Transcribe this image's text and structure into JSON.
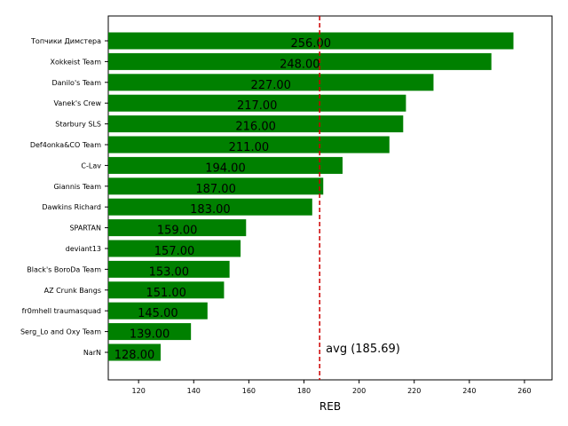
{
  "chart_data": {
    "type": "bar",
    "orientation": "horizontal",
    "categories": [
      "Топчики Димстера",
      "Xokkeist Team",
      "Danilo's Team",
      "Vanek's Crew",
      "Starbury SLS",
      "Def4onka&CO Team",
      "C-Lav",
      "Giannis Team",
      "Dawkins Richard",
      "SPARTAN",
      "deviant13",
      "Black's BoroDa Team",
      "AZ Crunk Bangs",
      "fr0mhell traumasquad",
      "Serg_Lo and Oxy Team",
      "NarN"
    ],
    "values": [
      256,
      248,
      227,
      217,
      216,
      211,
      194,
      187,
      183,
      159,
      157,
      153,
      151,
      145,
      139,
      128
    ],
    "data_labels": [
      "256.00",
      "248.00",
      "227.00",
      "217.00",
      "216.00",
      "211.00",
      "194.00",
      "187.00",
      "183.00",
      "159.00",
      "157.00",
      "153.00",
      "151.00",
      "145.00",
      "139.00",
      "128.00"
    ],
    "xlabel": "REB",
    "xlim": [
      109,
      270
    ],
    "x_ticks": [
      120,
      140,
      160,
      180,
      200,
      220,
      240,
      260
    ],
    "bar_color": "#008000",
    "average": {
      "value": 185.69,
      "label": "avg (185.69)",
      "color": "#cc0000",
      "style": "dashed"
    },
    "grid": false
  }
}
